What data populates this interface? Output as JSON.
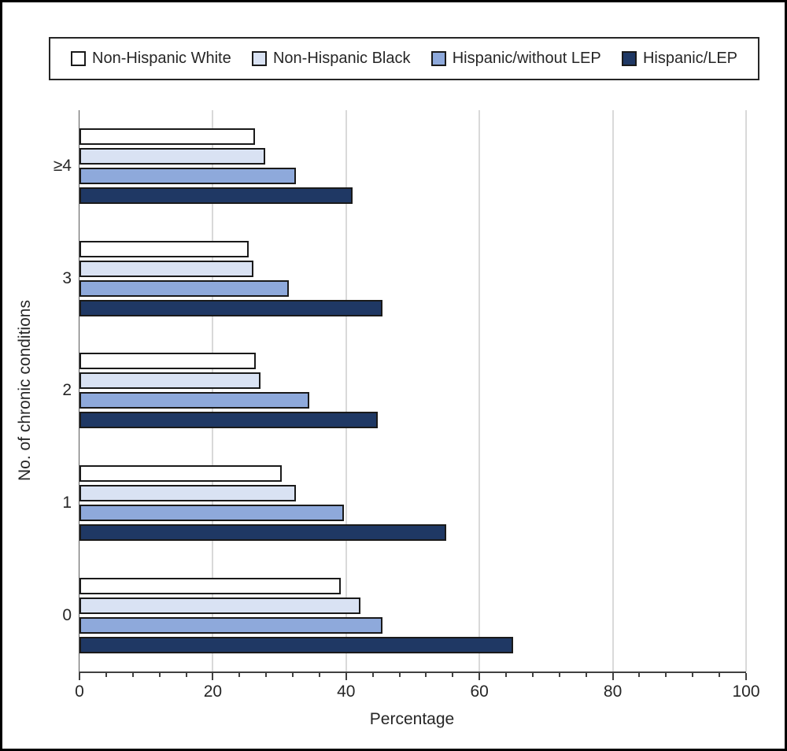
{
  "chart_data": {
    "type": "bar",
    "orientation": "horizontal",
    "title": "",
    "xlabel": "Percentage",
    "ylabel": "No. of chronic conditions",
    "categories": [
      "≥4",
      "3",
      "2",
      "1",
      "0"
    ],
    "series": [
      {
        "name": "Non-Hispanic White",
        "color": "#FFFFFF",
        "values": [
          26.3,
          25.4,
          26.5,
          30.3,
          39.2
        ]
      },
      {
        "name": "Non-Hispanic Black",
        "color": "#D9E2F3",
        "values": [
          27.9,
          26.1,
          27.2,
          32.5,
          42.1
        ]
      },
      {
        "name": "Hispanic/without LEP",
        "color": "#8EA9DB",
        "values": [
          32.5,
          31.4,
          34.5,
          39.7,
          45.5
        ]
      },
      {
        "name": "Hispanic/LEP",
        "color": "#1F3864",
        "values": [
          41.0,
          45.5,
          44.8,
          55.0,
          65.1
        ]
      }
    ],
    "xlim": [
      0,
      100
    ],
    "x_ticks": [
      0,
      20,
      40,
      60,
      80,
      100
    ],
    "x_minor_unit": 4,
    "grid": "vertical-major-gridlines",
    "legend_position": "top",
    "colors": {
      "bar_border": "#1A1A1A",
      "gridline": "#D9D9D9",
      "axis": "#404040",
      "text": "#262626",
      "frame_border": "#000000"
    }
  }
}
